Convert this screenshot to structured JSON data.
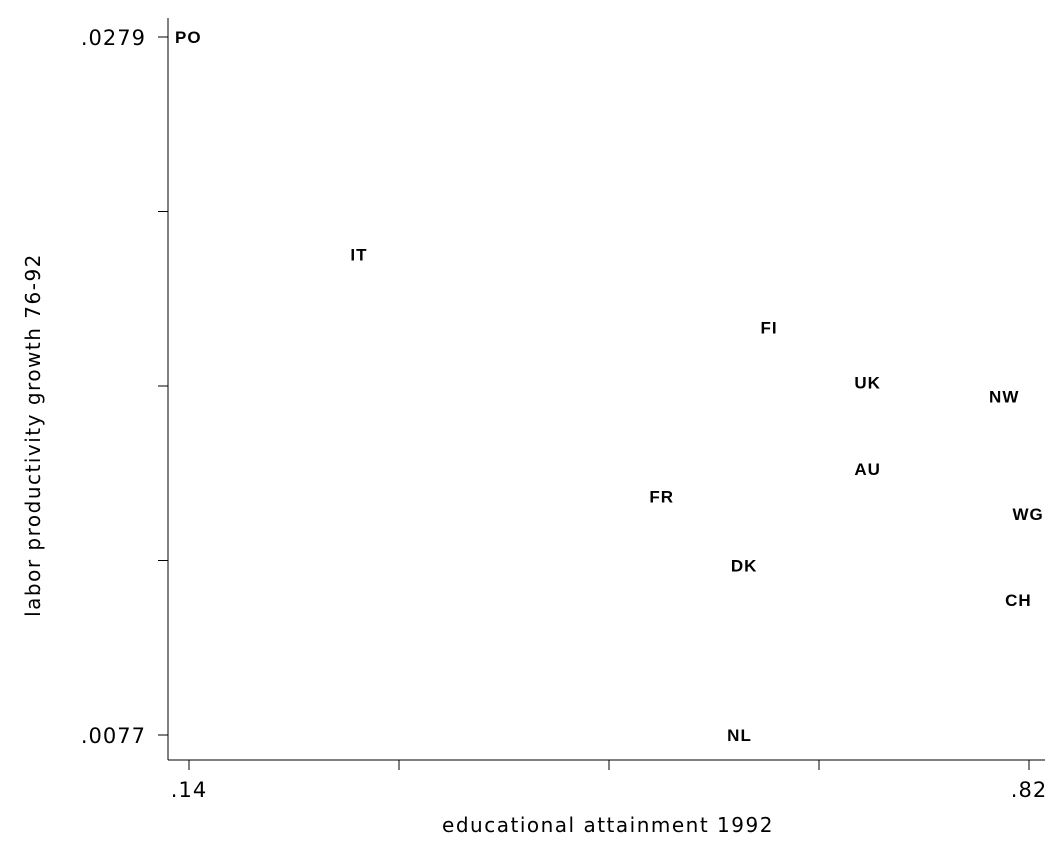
{
  "chart_data": {
    "type": "scatter",
    "marker": "label",
    "title": "",
    "xlabel": "educational attainment 1992",
    "ylabel": "labor productivity growth 76-92",
    "xlim": [
      0.14,
      0.82
    ],
    "ylim": [
      0.0077,
      0.0279
    ],
    "x_ticks": [
      0.14,
      0.31,
      0.48,
      0.65,
      0.82
    ],
    "x_tick_labels": [
      ".14",
      "",
      "",
      "",
      ".82"
    ],
    "y_ticks": [
      0.0077,
      0.01275,
      0.0178,
      0.02285,
      0.0279
    ],
    "y_tick_labels": [
      ".0077",
      "",
      "",
      "",
      ".0279"
    ],
    "grid": false,
    "legend": "none",
    "points": [
      {
        "label": "PO",
        "x": 0.14,
        "y": 0.0279
      },
      {
        "label": "IT",
        "x": 0.282,
        "y": 0.0216
      },
      {
        "label": "FI",
        "x": 0.614,
        "y": 0.0195
      },
      {
        "label": "UK",
        "x": 0.69,
        "y": 0.0179
      },
      {
        "label": "NW",
        "x": 0.799,
        "y": 0.0175
      },
      {
        "label": "AU",
        "x": 0.69,
        "y": 0.0154
      },
      {
        "label": "FR",
        "x": 0.524,
        "y": 0.0146
      },
      {
        "label": "WG",
        "x": 0.818,
        "y": 0.0141
      },
      {
        "label": "DK",
        "x": 0.59,
        "y": 0.0126
      },
      {
        "label": "CH",
        "x": 0.812,
        "y": 0.0116
      },
      {
        "label": "NL",
        "x": 0.587,
        "y": 0.0077
      }
    ]
  }
}
